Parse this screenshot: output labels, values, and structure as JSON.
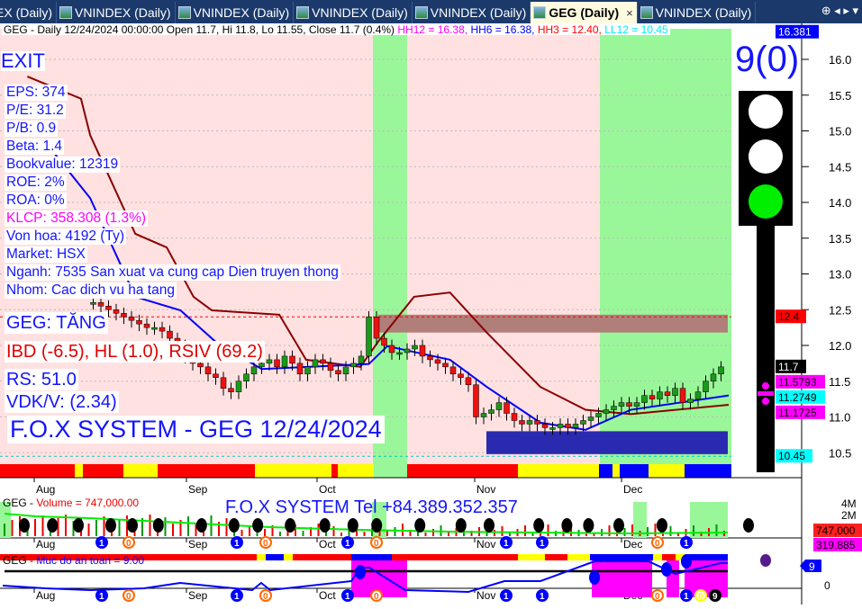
{
  "tabs": [
    {
      "label": "EX (Daily)",
      "active": false
    },
    {
      "label": "VNINDEX (Daily)",
      "active": false
    },
    {
      "label": "VNINDEX (Daily)",
      "active": false
    },
    {
      "label": "VNINDEX (Daily)",
      "active": false
    },
    {
      "label": "VNINDEX (Daily)",
      "active": false
    },
    {
      "label": "GEG (Daily)",
      "active": true,
      "close": "×"
    },
    {
      "label": "VNINDEX (Daily)",
      "active": false
    }
  ],
  "tab_nav": "⊕ ◂ ▸ ▾",
  "header": {
    "text": "GEG - Daily 12/24/2024 00:00:00 Open 11.7, Hi 11.8, Lo 11.55, Close 11.7 (0.4%)",
    "hh12": "HH12 = 16.38,",
    "hh6": "HH6 = 16.38,",
    "hh3": "HH3 = 12.40,",
    "ll12": "LL12 = 10.45"
  },
  "signal": {
    "exit": "EXIT",
    "count": "9(0)",
    "light_colors": [
      "#ffffff",
      "#ffffff",
      "#00ee00"
    ]
  },
  "info": {
    "eps": "EPS: 374",
    "pe": "P/E: 31.2",
    "pb": "P/B: 0.9",
    "beta": "Beta: 1.4",
    "bookvalue": "Bookvalue: 12319",
    "roe": "ROE: 2%",
    "roa": "ROA: 0%",
    "klcp": "KLCP: 358.308 (1.3%)",
    "vonhoa": "Von hoa: 4192 (Ty)",
    "market": "Market: HSX",
    "nganh": "Nganh: 7535 San xuat va cung cap Dien truyen thong",
    "nhom": "Nhom: Cac dich vu ha tang"
  },
  "status": {
    "trend": "GEG: TĂNG",
    "ibd": "IBD (-6.5), HL (1.0), RSIV (69.2)",
    "rs": "RS: 51.0",
    "vdk": "VDK/V:  (2.34)",
    "banner": "F.O.X SYSTEM - GEG 12/24/2024"
  },
  "price_axis": {
    "ticks": [
      "16.0",
      "15.5",
      "15.0",
      "14.5",
      "14.0",
      "13.5",
      "13.0",
      "12.5",
      "12.0",
      "11.5",
      "11.0",
      "10.5"
    ],
    "range": [
      10.3,
      16.5
    ]
  },
  "price_labels": [
    {
      "text": "16.381",
      "value": 16.381,
      "bg": "#0000ff",
      "fg": "#ffffff"
    },
    {
      "text": "12.4",
      "value": 12.4,
      "bg": "#ff0000",
      "fg": "#000000"
    },
    {
      "text": "11.7",
      "value": 11.7,
      "bg": "#000000",
      "fg": "#ffffff"
    },
    {
      "text": "11.5793",
      "value": 11.5793,
      "bg": "#ff00ff",
      "fg": "#000000"
    },
    {
      "text": "11.2749",
      "value": 11.2749,
      "bg": "#00ffff",
      "fg": "#000000"
    },
    {
      "text": "11.1725",
      "value": 11.1725,
      "bg": "#ff00ff",
      "fg": "#000000"
    },
    {
      "text": "10.45",
      "value": 10.45,
      "bg": "#00ffff",
      "fg": "#000000"
    }
  ],
  "months": [
    "Aug",
    "Sep",
    "Oct",
    "Nov",
    "Dec"
  ],
  "chart_data": {
    "type": "candlestick",
    "first_bar": 11,
    "closes": [
      12.6,
      12.55,
      12.5,
      12.45,
      12.4,
      12.35,
      12.3,
      12.25,
      12.25,
      12.2,
      12.1,
      12.0,
      11.85,
      11.75,
      11.7,
      11.6,
      11.55,
      11.4,
      11.35,
      11.5,
      11.6,
      11.7,
      11.75,
      11.8,
      11.7,
      11.85,
      11.75,
      11.6,
      11.7,
      11.8,
      11.75,
      11.65,
      11.6,
      11.7,
      11.75,
      11.85,
      12.4,
      12.1,
      12.0,
      11.9,
      11.9,
      11.95,
      12.0,
      11.85,
      11.8,
      11.75,
      11.7,
      11.6,
      11.55,
      11.45,
      11.0,
      11.05,
      11.1,
      11.2,
      11.05,
      10.95,
      10.9,
      10.95,
      10.9,
      10.85,
      10.85,
      10.9,
      10.85,
      10.9,
      10.95,
      11.0,
      11.05,
      11.1,
      11.15,
      11.2,
      11.15,
      11.2,
      11.3,
      11.25,
      11.35,
      11.3,
      11.4,
      11.2,
      11.25,
      11.35,
      11.5,
      11.6,
      11.7
    ],
    "line_blue": [
      [
        5.9,
        14.69
      ],
      [
        10.6,
        14.06
      ],
      [
        16.5,
        12.68
      ],
      [
        22.4,
        12.49
      ],
      [
        27,
        12.05
      ],
      [
        33,
        11.67
      ],
      [
        47,
        11.74
      ],
      [
        49.4,
        11.99
      ],
      [
        57.6,
        11.8
      ],
      [
        62.4,
        11.42
      ],
      [
        69.4,
        10.92
      ],
      [
        75.3,
        10.82
      ],
      [
        81.2,
        11.1
      ],
      [
        94,
        11.3
      ]
    ],
    "line_darkred": [
      [
        2.4,
        15.76
      ],
      [
        9.4,
        15.45
      ],
      [
        10.6,
        14.94
      ],
      [
        16.5,
        13.56
      ],
      [
        20.6,
        13.37
      ],
      [
        24.1,
        12.68
      ],
      [
        26.5,
        12.49
      ],
      [
        35.3,
        12.43
      ],
      [
        38.8,
        11.8
      ],
      [
        45.9,
        11.7
      ],
      [
        48.2,
        12.05
      ],
      [
        52.9,
        12.68
      ],
      [
        57.6,
        12.74
      ],
      [
        62.4,
        12.18
      ],
      [
        65.9,
        11.8
      ],
      [
        69.4,
        11.42
      ],
      [
        75.3,
        11.1
      ],
      [
        81.2,
        11.04
      ],
      [
        94,
        11.17
      ]
    ],
    "resistance_zone": [
      12.18,
      12.43
    ],
    "support_zone": [
      10.48,
      10.8
    ],
    "hh3": 12.4,
    "ll12": 10.45
  },
  "colors": {
    "pink_bg": "#ffe1e1",
    "green_bg": "#99f799",
    "red": "#ff0000",
    "yellow": "#ffff00",
    "blue": "#0000ff",
    "magenta": "#ff00ff",
    "cyan": "#00ffff"
  },
  "trend_band": [
    [
      "#ff0000",
      83
    ],
    [
      "#ffff00",
      9
    ],
    [
      "#ff0000",
      45
    ],
    [
      "#ffff00",
      38
    ],
    [
      "#ff0000",
      108
    ],
    [
      "#ffff00",
      85
    ],
    [
      "#ff0000",
      7
    ],
    [
      "#ffff00",
      40
    ],
    [
      "#99f799",
      37
    ],
    [
      "#ff0000",
      123
    ],
    [
      "#ffff00",
      90
    ],
    [
      "#0000ff",
      15
    ],
    [
      "#ffff00",
      8
    ],
    [
      "#0000ff",
      32
    ],
    [
      "#ffff00",
      40
    ],
    [
      "#0000ff",
      52
    ]
  ],
  "volume": {
    "title": "GEG",
    "label": "Volume = 747,000.00",
    "banner": "F.O.X SYSTEM Tel +84.389.352.357",
    "ticks": [
      "4M",
      "2M"
    ],
    "last": "747,000",
    "avg": "319,885",
    "markers": [
      "1",
      "0",
      "1",
      "0",
      "1",
      "0",
      "1",
      "1",
      "0",
      "1"
    ]
  },
  "safety": {
    "title": "GEG",
    "label": "Muc do an toan = 9.00",
    "value": "9",
    "tick": "0",
    "markers": [
      "1",
      "0",
      "1",
      "0",
      "1",
      "0",
      "1",
      "1",
      "0",
      "1",
      "8",
      "9"
    ]
  }
}
